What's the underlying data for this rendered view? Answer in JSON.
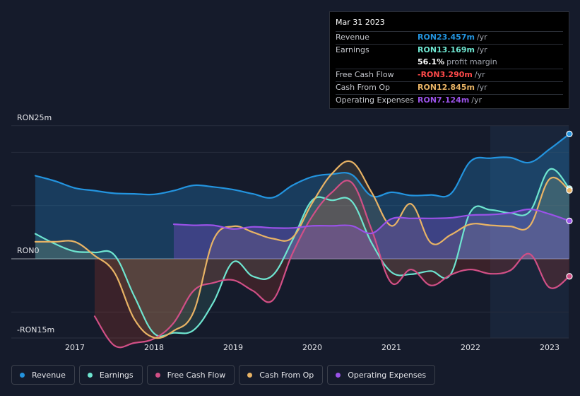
{
  "tooltip": {
    "date": "Mar 31 2023",
    "rows": {
      "revenue": {
        "label": "Revenue",
        "value": "RON23.457m",
        "unit": "/yr"
      },
      "earnings": {
        "label": "Earnings",
        "value": "RON13.169m",
        "unit": "/yr"
      },
      "margin": {
        "value": "56.1%",
        "text": "profit margin"
      },
      "fcf": {
        "label": "Free Cash Flow",
        "value": "-RON3.290m",
        "unit": "/yr"
      },
      "cfo": {
        "label": "Cash From Op",
        "value": "RON12.845m",
        "unit": "/yr"
      },
      "opex": {
        "label": "Operating Expenses",
        "value": "RON7.124m",
        "unit": "/yr"
      }
    }
  },
  "legend": {
    "revenue": "Revenue",
    "earnings": "Earnings",
    "fcf": "Free Cash Flow",
    "cfo": "Cash From Op",
    "opex": "Operating Expenses"
  },
  "colors": {
    "revenue": "#2394df",
    "earnings": "#6ee5d0",
    "fcf": "#d14f86",
    "cfo": "#e8b365",
    "opex": "#9a52e8",
    "negative": "#ff4a4a"
  },
  "chart_data": {
    "type": "line",
    "title": "",
    "xlabel": "",
    "ylabel": "",
    "y_top_label": "RON25m",
    "y_zero_label": "RON0",
    "y_bottom_label": "-RON15m",
    "ylim": [
      -15,
      25
    ],
    "xlim": [
      2016.4,
      2023.25
    ],
    "x_ticks": [
      {
        "value": 2017,
        "label": "2017"
      },
      {
        "value": 2018,
        "label": "2018"
      },
      {
        "value": 2019,
        "label": "2019"
      },
      {
        "value": 2020,
        "label": "2020"
      },
      {
        "value": 2021,
        "label": "2021"
      },
      {
        "value": 2022,
        "label": "2022"
      },
      {
        "value": 2023,
        "label": "2023"
      }
    ],
    "highlight_start": 2022.25,
    "series": [
      {
        "key": "revenue",
        "name": "Revenue",
        "x": [
          2016.5,
          2016.75,
          2017.0,
          2017.25,
          2017.5,
          2017.75,
          2018.0,
          2018.25,
          2018.5,
          2018.75,
          2019.0,
          2019.25,
          2019.5,
          2019.75,
          2020.0,
          2020.25,
          2020.5,
          2020.75,
          2021.0,
          2021.25,
          2021.5,
          2021.75,
          2022.0,
          2022.25,
          2022.5,
          2022.75,
          2023.0,
          2023.25
        ],
        "values": [
          15.6,
          14.6,
          13.3,
          12.8,
          12.3,
          12.2,
          12.1,
          12.8,
          13.8,
          13.5,
          13.0,
          12.2,
          11.5,
          13.8,
          15.4,
          15.9,
          15.8,
          11.8,
          12.5,
          11.9,
          12.0,
          12.2,
          18.3,
          18.9,
          19.0,
          18.1,
          20.6,
          23.457
        ]
      },
      {
        "key": "earnings",
        "name": "Earnings",
        "x": [
          2016.5,
          2016.75,
          2017.0,
          2017.25,
          2017.5,
          2017.75,
          2018.0,
          2018.25,
          2018.5,
          2018.75,
          2019.0,
          2019.25,
          2019.5,
          2019.75,
          2020.0,
          2020.25,
          2020.5,
          2020.75,
          2021.0,
          2021.25,
          2021.5,
          2021.75,
          2022.0,
          2022.25,
          2022.5,
          2022.75,
          2023.0,
          2023.25
        ],
        "values": [
          4.7,
          2.8,
          1.4,
          1.2,
          0.7,
          -7.0,
          -14.0,
          -13.9,
          -13.4,
          -8.2,
          -0.6,
          -3.3,
          -3.1,
          3.5,
          11.0,
          11.0,
          10.8,
          3.0,
          -2.5,
          -2.9,
          -2.3,
          -2.9,
          8.8,
          9.2,
          8.6,
          8.9,
          16.8,
          13.169
        ]
      },
      {
        "key": "fcf",
        "name": "Free Cash Flow",
        "x": [
          2017.25,
          2017.5,
          2017.75,
          2018.0,
          2018.25,
          2018.5,
          2018.75,
          2019.0,
          2019.25,
          2019.5,
          2019.75,
          2020.0,
          2020.25,
          2020.5,
          2020.75,
          2021.0,
          2021.25,
          2021.5,
          2021.75,
          2022.0,
          2022.25,
          2022.5,
          2022.75,
          2023.0,
          2023.25
        ],
        "values": [
          -10.8,
          -16.3,
          -15.8,
          -15.0,
          -12.0,
          -6.0,
          -4.5,
          -4.0,
          -6.0,
          -7.8,
          1.0,
          8.0,
          12.5,
          14.3,
          5.5,
          -4.5,
          -2.0,
          -5.0,
          -3.0,
          -2.0,
          -2.8,
          -2.2,
          0.9,
          -5.4,
          -3.29
        ]
      },
      {
        "key": "cfo",
        "name": "Cash From Op",
        "x": [
          2016.5,
          2016.75,
          2017.0,
          2017.25,
          2017.5,
          2017.75,
          2018.0,
          2018.25,
          2018.5,
          2018.75,
          2019.0,
          2019.25,
          2019.5,
          2019.75,
          2020.0,
          2020.25,
          2020.5,
          2020.75,
          2021.0,
          2021.25,
          2021.5,
          2021.75,
          2022.0,
          2022.25,
          2022.5,
          2022.75,
          2023.0,
          2023.25
        ],
        "values": [
          3.2,
          3.2,
          3.2,
          0.6,
          -2.6,
          -11.3,
          -14.8,
          -13.5,
          -10.0,
          3.5,
          6.1,
          5.0,
          3.8,
          4.0,
          10.5,
          16.0,
          18.2,
          12.5,
          6.2,
          10.3,
          3.0,
          4.5,
          6.5,
          6.3,
          6.1,
          6.2,
          15.0,
          12.845
        ]
      },
      {
        "key": "opex",
        "name": "Operating Expenses",
        "x": [
          2018.25,
          2018.5,
          2018.75,
          2019.0,
          2019.25,
          2019.5,
          2019.75,
          2020.0,
          2020.25,
          2020.5,
          2020.75,
          2021.0,
          2021.25,
          2021.5,
          2021.75,
          2022.0,
          2022.25,
          2022.5,
          2022.75,
          2023.0,
          2023.25
        ],
        "values": [
          6.5,
          6.3,
          6.3,
          5.6,
          6.0,
          5.8,
          5.8,
          6.2,
          6.2,
          6.2,
          4.8,
          7.5,
          7.6,
          7.6,
          7.7,
          8.2,
          8.3,
          8.6,
          9.3,
          8.4,
          7.124
        ]
      }
    ]
  }
}
